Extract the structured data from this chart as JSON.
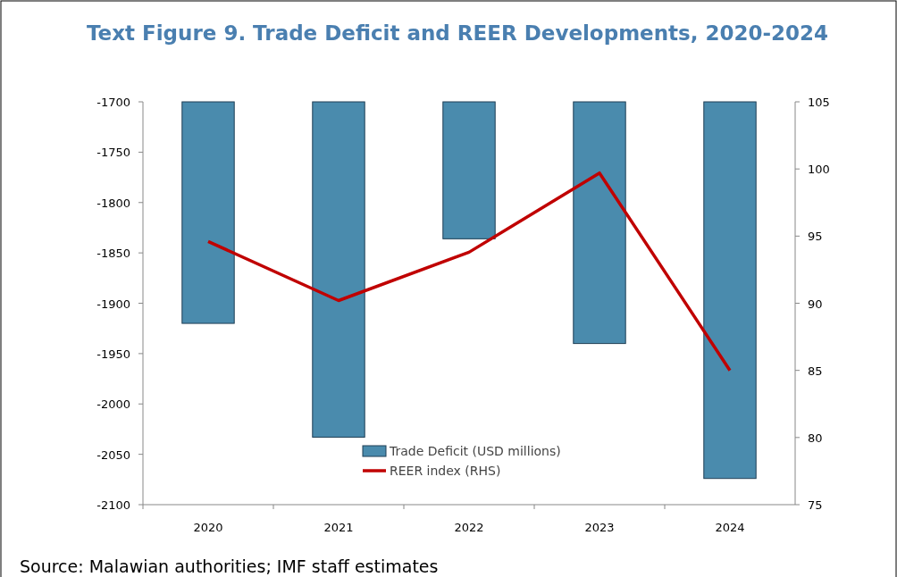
{
  "chart_data": {
    "type": "bar",
    "title": "Text Figure 9. Trade Deficit and REER Developments, 2020-2024",
    "categories": [
      "2020",
      "2021",
      "2022",
      "2023",
      "2024"
    ],
    "series": [
      {
        "name": "Trade Deficit (USD millions)",
        "color": "#4a8bad",
        "values": [
          -1920,
          -2033,
          -1836,
          -1940,
          -2074
        ]
      },
      {
        "name": "REER index (RHS)",
        "type": "line",
        "axis": "y2",
        "color": "#c00000",
        "values": [
          94.6,
          90.2,
          93.8,
          99.7,
          85.0
        ]
      }
    ],
    "ylim": [
      -2100,
      -1700
    ],
    "yticks": [
      -2100,
      -2050,
      -2000,
      -1950,
      -1900,
      -1850,
      -1800,
      -1750,
      -1700
    ],
    "y2lim": [
      75,
      105
    ],
    "y2ticks": [
      75,
      80,
      85,
      90,
      95,
      100,
      105
    ],
    "legend": "bottom",
    "grid": false,
    "marker": "none",
    "line_style": "solid",
    "annotations": [
      "Source: Malawian authorities; IMF staff estimates"
    ]
  }
}
